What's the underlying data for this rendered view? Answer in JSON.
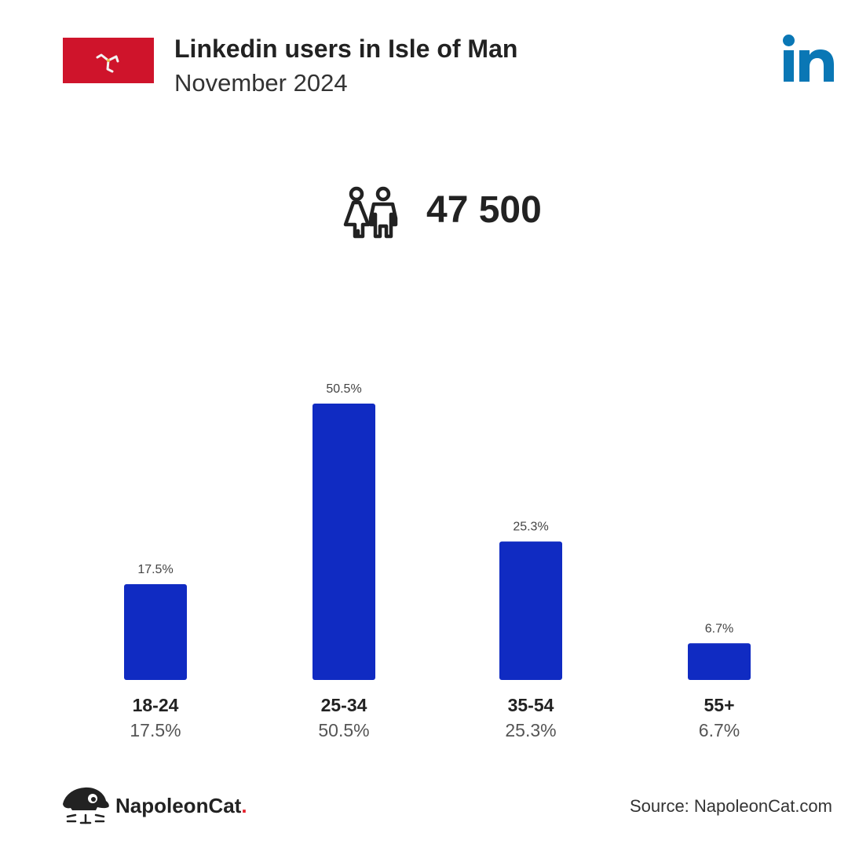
{
  "header": {
    "title": "Linkedin users in Isle of Man",
    "subtitle": "November 2024"
  },
  "summary": {
    "total_users": "47 500"
  },
  "colors": {
    "bar": "#102bc2",
    "flag_red": "#cf142b",
    "linkedin_blue": "#0a77b5",
    "brand_dot": "#e4202c",
    "text_dark": "#222222",
    "text_muted": "#555555"
  },
  "icons": {
    "flag": "isle-of-man-flag-icon",
    "social": "linkedin-logo-icon",
    "users": "users-icon",
    "brand": "napoleoncat-logo-icon"
  },
  "chart_data": {
    "type": "bar",
    "categories": [
      "18-24",
      "25-34",
      "35-54",
      "55+"
    ],
    "values": [
      17.5,
      50.5,
      25.3,
      6.7
    ],
    "value_labels": [
      "17.5%",
      "50.5%",
      "25.3%",
      "6.7%"
    ],
    "title": "",
    "xlabel": "",
    "ylabel": "",
    "ylim": [
      0,
      50.5
    ],
    "grid": false
  },
  "footer": {
    "brand_name": "NapoleonCat",
    "brand_dot": ".",
    "source": "Source: NapoleonCat.com"
  }
}
